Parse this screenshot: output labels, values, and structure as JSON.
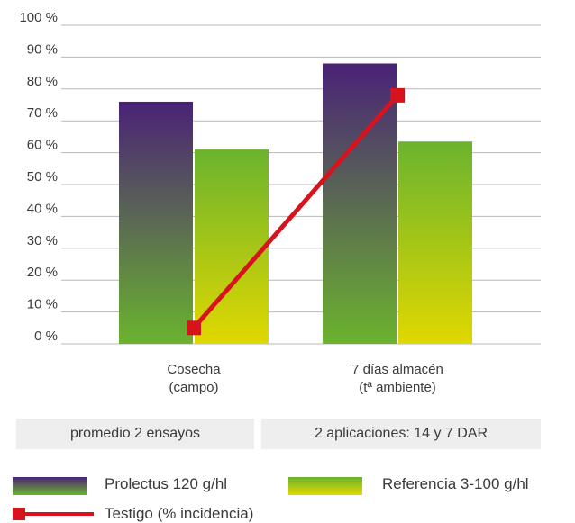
{
  "chart_data": {
    "type": "bar",
    "categories": [
      [
        "Cosecha",
        "(campo)"
      ],
      [
        "7 días almacén",
        "(tª ambiente)"
      ]
    ],
    "ylim": [
      0,
      100
    ],
    "yticks": [
      0,
      10,
      20,
      30,
      40,
      50,
      60,
      70,
      80,
      90,
      100
    ],
    "ytick_labels": [
      "0 %",
      "10 %",
      "20 %",
      "30 %",
      "40 %",
      "50 %",
      "60 %",
      "70 %",
      "80 %",
      "90 %",
      "100 %"
    ],
    "grid": true,
    "series": [
      {
        "name": "Prolectus 120 g/hl",
        "type": "bar",
        "values": [
          76,
          88
        ],
        "color_top": "#4a2277",
        "color_bottom": "#6bb32e"
      },
      {
        "name": "Referencia 3-100 g/hl",
        "type": "bar",
        "values": [
          61,
          63.5
        ],
        "color_top": "#6bb32e",
        "color_bottom": "#e0d800"
      },
      {
        "name": "Testigo (% incidencia)",
        "type": "line",
        "values": [
          5,
          78
        ],
        "color": "#d7141e"
      }
    ],
    "notes": [
      "promedio 2 ensayos",
      "2 aplicaciones: 14 y 7 DAR"
    ]
  }
}
